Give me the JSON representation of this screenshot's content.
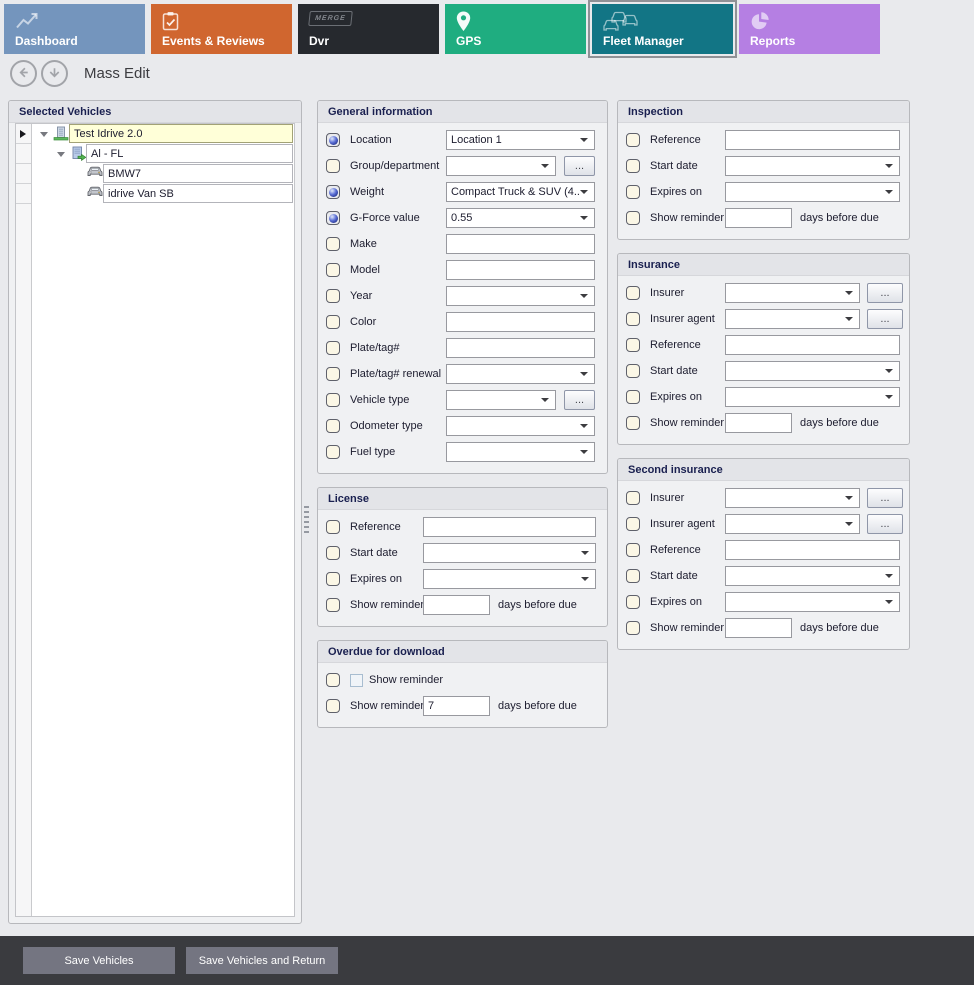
{
  "colors": {
    "dashboard_tab": "#7495bd",
    "events_tab": "#d0662f",
    "dvr_tab": "#26292e",
    "gps_tab": "#1fad80",
    "fleet_tab": "#127585",
    "reports_tab": "#b57fe3",
    "footer_bar": "#3a3b3f",
    "highlight_row": "#ffffd8"
  },
  "tabs": [
    {
      "label": "Dashboard",
      "icon": "chart-icon",
      "color": "#7495bd",
      "selected": false
    },
    {
      "label": "Events & Reviews",
      "icon": "clipboard-icon",
      "color": "#d0662f",
      "selected": false
    },
    {
      "label": "Dvr",
      "icon": "merge-logo-icon",
      "logo_text": "MERGE",
      "color": "#26292e",
      "selected": false
    },
    {
      "label": "GPS",
      "icon": "map-pin-icon",
      "color": "#1fad80",
      "selected": false
    },
    {
      "label": "Fleet Manager",
      "icon": "fleet-cars-icon",
      "color": "#127585",
      "selected": true
    },
    {
      "label": "Reports",
      "icon": "pie-chart-icon",
      "color": "#b57fe3",
      "selected": false
    }
  ],
  "toolbar": {
    "title": "Mass Edit"
  },
  "tree": {
    "title": "Selected Vehicles",
    "nodes": [
      {
        "label": "Test Idrive 2.0",
        "level": 0,
        "icon": "company-icon",
        "expander": true,
        "highlighted": true,
        "row_indicator": true
      },
      {
        "label": "Al - FL",
        "level": 1,
        "icon": "fleet-group-icon",
        "expander": true,
        "highlighted": false,
        "row_indicator": false
      },
      {
        "label": "BMW7",
        "level": 2,
        "icon": "vehicle-icon",
        "expander": false,
        "highlighted": false,
        "row_indicator": false
      },
      {
        "label": "idrive Van SB",
        "level": 2,
        "icon": "vehicle-icon",
        "expander": false,
        "highlighted": false,
        "row_indicator": false
      }
    ]
  },
  "ui": {
    "ellipsis_label": "..."
  },
  "panels": {
    "general": {
      "title": "General information",
      "rows": [
        {
          "label": "Location",
          "checked": true,
          "control": "select",
          "value": "Location 1"
        },
        {
          "label": "Group/department",
          "checked": false,
          "control": "select_ellipsis",
          "value": ""
        },
        {
          "label": "Weight",
          "checked": true,
          "control": "select",
          "value": "Compact Truck & SUV (4..."
        },
        {
          "label": "G-Force value",
          "checked": true,
          "control": "select",
          "value": "0.55"
        },
        {
          "label": "Make",
          "checked": false,
          "control": "text",
          "value": ""
        },
        {
          "label": "Model",
          "checked": false,
          "control": "text",
          "value": ""
        },
        {
          "label": "Year",
          "checked": false,
          "control": "select",
          "value": ""
        },
        {
          "label": "Color",
          "checked": false,
          "control": "text",
          "value": ""
        },
        {
          "label": "Plate/tag#",
          "checked": false,
          "control": "text",
          "value": ""
        },
        {
          "label": "Plate/tag# renewal",
          "checked": false,
          "control": "select",
          "value": ""
        },
        {
          "label": "Vehicle type",
          "checked": false,
          "control": "select_ellipsis",
          "value": ""
        },
        {
          "label": "Odometer type",
          "checked": false,
          "control": "select",
          "value": ""
        },
        {
          "label": "Fuel type",
          "checked": false,
          "control": "select",
          "value": ""
        }
      ]
    },
    "license": {
      "title": "License",
      "rows": [
        {
          "label": "Reference",
          "checked": false,
          "control": "text",
          "value": ""
        },
        {
          "label": "Start date",
          "checked": false,
          "control": "select",
          "value": ""
        },
        {
          "label": "Expires on",
          "checked": false,
          "control": "select",
          "value": ""
        },
        {
          "label": "Show reminder",
          "checked": false,
          "control": "reminder",
          "value": "",
          "suffix": "days before due"
        }
      ]
    },
    "overdue": {
      "title": "Overdue for download",
      "rows": [
        {
          "label": "",
          "checked": false,
          "control": "check_label",
          "value": "Show reminder"
        },
        {
          "label": "Show reminder",
          "checked": false,
          "control": "reminder",
          "value": "7",
          "suffix": "days before due"
        }
      ]
    },
    "inspection": {
      "title": "Inspection",
      "rows": [
        {
          "label": "Reference",
          "checked": false,
          "control": "text",
          "value": ""
        },
        {
          "label": "Start date",
          "checked": false,
          "control": "select",
          "value": ""
        },
        {
          "label": "Expires on",
          "checked": false,
          "control": "select",
          "value": ""
        },
        {
          "label": "Show reminder",
          "checked": false,
          "control": "reminder",
          "value": "",
          "suffix": "days before due"
        }
      ]
    },
    "insurance": {
      "title": "Insurance",
      "rows": [
        {
          "label": "Insurer",
          "checked": false,
          "control": "select_ellipsis",
          "value": ""
        },
        {
          "label": "Insurer agent",
          "checked": false,
          "control": "select_ellipsis",
          "value": ""
        },
        {
          "label": "Reference",
          "checked": false,
          "control": "text",
          "value": ""
        },
        {
          "label": "Start date",
          "checked": false,
          "control": "select",
          "value": ""
        },
        {
          "label": "Expires on",
          "checked": false,
          "control": "select",
          "value": ""
        },
        {
          "label": "Show reminder",
          "checked": false,
          "control": "reminder",
          "value": "",
          "suffix": "days before due"
        }
      ]
    },
    "second_insurance": {
      "title": "Second insurance",
      "rows": [
        {
          "label": "Insurer",
          "checked": false,
          "control": "select_ellipsis",
          "value": ""
        },
        {
          "label": "Insurer agent",
          "checked": false,
          "control": "select_ellipsis",
          "value": ""
        },
        {
          "label": "Reference",
          "checked": false,
          "control": "text",
          "value": ""
        },
        {
          "label": "Start date",
          "checked": false,
          "control": "select",
          "value": ""
        },
        {
          "label": "Expires on",
          "checked": false,
          "control": "select",
          "value": ""
        },
        {
          "label": "Show reminder",
          "checked": false,
          "control": "reminder",
          "value": "",
          "suffix": "days before due"
        }
      ]
    }
  },
  "footer": {
    "save_label": "Save Vehicles",
    "save_return_label": "Save Vehicles and Return"
  }
}
